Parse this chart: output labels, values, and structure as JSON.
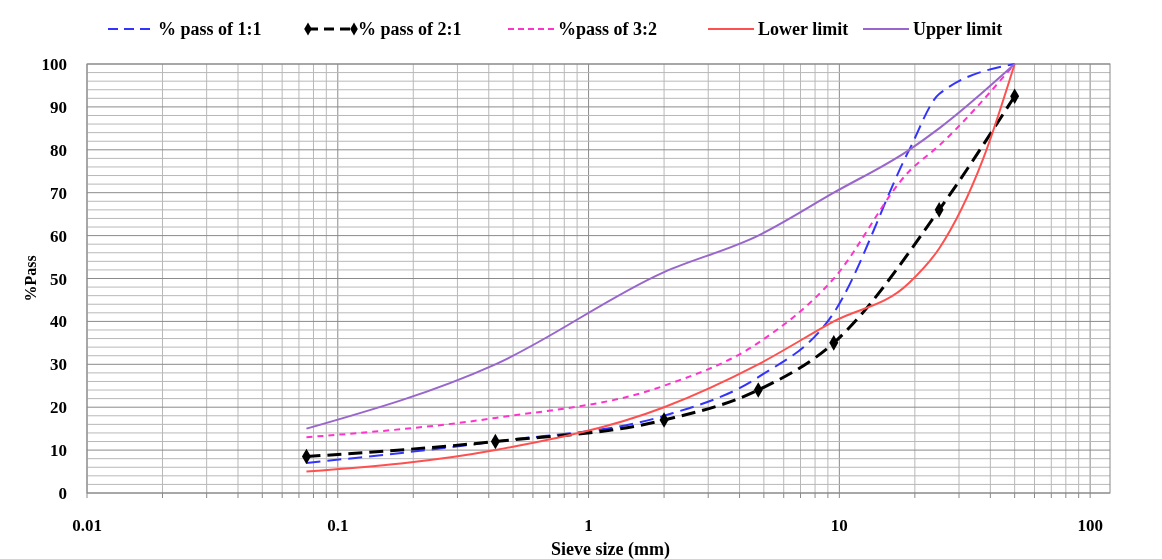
{
  "chart_data": {
    "type": "line",
    "xlabel": "Sieve size (mm)",
    "ylabel": "%Pass",
    "log": "x",
    "grid": true,
    "legend": "top",
    "xlim": [
      0.01,
      120
    ],
    "ylim": [
      0,
      100
    ],
    "xticks": [
      0.01,
      {
        "value": 0.02,
        "label": null
      },
      {
        "value": 0.03,
        "label": null
      },
      {
        "value": 0.04,
        "label": null
      },
      {
        "value": 0.05,
        "label": null
      },
      {
        "value": 0.06,
        "label": null
      },
      {
        "value": 0.07,
        "label": null
      },
      {
        "value": 0.08,
        "label": null
      },
      {
        "value": 0.09,
        "label": null
      },
      0.1,
      {
        "value": 0.2,
        "label": null
      },
      {
        "value": 0.3,
        "label": null
      },
      {
        "value": 0.4,
        "label": null
      },
      {
        "value": 0.5,
        "label": null
      },
      {
        "value": 0.6,
        "label": null
      },
      {
        "value": 0.7,
        "label": null
      },
      {
        "value": 0.8,
        "label": null
      },
      {
        "value": 0.9,
        "label": null
      },
      1,
      {
        "value": 2,
        "label": null
      },
      {
        "value": 3,
        "label": null
      },
      {
        "value": 4,
        "label": null
      },
      {
        "value": 5,
        "label": null
      },
      {
        "value": 6,
        "label": null
      },
      {
        "value": 7,
        "label": null
      },
      {
        "value": 8,
        "label": null
      },
      {
        "value": 9,
        "label": null
      },
      10,
      {
        "value": 20,
        "label": null
      },
      {
        "value": 30,
        "label": null
      },
      {
        "value": 40,
        "label": null
      },
      {
        "value": 50,
        "label": null
      },
      {
        "value": 60,
        "label": null
      },
      {
        "value": 70,
        "label": null
      },
      {
        "value": 80,
        "label": null
      },
      {
        "value": 90,
        "label": null
      },
      100
    ],
    "yticks": [
      0,
      {
        "value": 2,
        "label": null
      },
      {
        "value": 4,
        "label": null
      },
      {
        "value": 6,
        "label": null
      },
      {
        "value": 8,
        "label": null
      },
      10,
      {
        "value": 12,
        "label": null
      },
      {
        "value": 14,
        "label": null
      },
      {
        "value": 16,
        "label": null
      },
      {
        "value": 18,
        "label": null
      },
      20,
      {
        "value": 22,
        "label": null
      },
      {
        "value": 24,
        "label": null
      },
      {
        "value": 26,
        "label": null
      },
      {
        "value": 28,
        "label": null
      },
      30,
      {
        "value": 32,
        "label": null
      },
      {
        "value": 34,
        "label": null
      },
      {
        "value": 36,
        "label": null
      },
      {
        "value": 38,
        "label": null
      },
      40,
      {
        "value": 42,
        "label": null
      },
      {
        "value": 44,
        "label": null
      },
      {
        "value": 46,
        "label": null
      },
      {
        "value": 48,
        "label": null
      },
      50,
      {
        "value": 52,
        "label": null
      },
      {
        "value": 54,
        "label": null
      },
      {
        "value": 56,
        "label": null
      },
      {
        "value": 58,
        "label": null
      },
      60,
      {
        "value": 62,
        "label": null
      },
      {
        "value": 64,
        "label": null
      },
      {
        "value": 66,
        "label": null
      },
      {
        "value": 68,
        "label": null
      },
      70,
      {
        "value": 72,
        "label": null
      },
      {
        "value": 74,
        "label": null
      },
      {
        "value": 76,
        "label": null
      },
      {
        "value": 78,
        "label": null
      },
      80,
      {
        "value": 82,
        "label": null
      },
      {
        "value": 84,
        "label": null
      },
      {
        "value": 86,
        "label": null
      },
      {
        "value": 88,
        "label": null
      },
      90,
      {
        "value": 92,
        "label": null
      },
      {
        "value": 94,
        "label": null
      },
      {
        "value": 96,
        "label": null
      },
      {
        "value": 98,
        "label": null
      },
      100
    ],
    "series": [
      {
        "name": "% pass of 1:1",
        "color": "#3333ff",
        "line_style": "dashed",
        "marker": "none",
        "x": [
          0.075,
          0.425,
          2,
          4.75,
          9.5,
          19,
          25,
          50
        ],
        "values": [
          7,
          12,
          18,
          27,
          42,
          80,
          93,
          100
        ]
      },
      {
        "name": "% pass of 2:1",
        "color": "#000000",
        "line_style": "dashed",
        "marker": "diamond",
        "x": [
          0.075,
          0.425,
          2,
          4.75,
          9.5,
          25,
          50
        ],
        "values": [
          8.5,
          12,
          17,
          24,
          35,
          66,
          92.5
        ]
      },
      {
        "name": "%pass of 3:2",
        "color": "#ff33cc",
        "line_style": "dotted",
        "marker": "none",
        "x": [
          0.075,
          0.425,
          2,
          4.75,
          9.5,
          19,
          25,
          50
        ],
        "values": [
          13,
          17.5,
          25,
          35,
          50,
          75,
          81,
          100
        ]
      },
      {
        "name": "Lower limit",
        "color": "#ff5050",
        "line_style": "solid",
        "marker": "none",
        "x": [
          0.075,
          0.425,
          2,
          4.75,
          9.5,
          19,
          25,
          37.5,
          50
        ],
        "values": [
          5,
          10,
          20,
          30,
          40,
          49,
          57,
          78,
          100
        ]
      },
      {
        "name": "Upper limit",
        "color": "#9966cc",
        "line_style": "solid",
        "marker": "none",
        "x": [
          0.075,
          0.425,
          2,
          4.75,
          9.5,
          19,
          25,
          50
        ],
        "values": [
          15,
          30,
          51.5,
          60,
          70,
          80,
          85,
          100
        ]
      }
    ]
  }
}
